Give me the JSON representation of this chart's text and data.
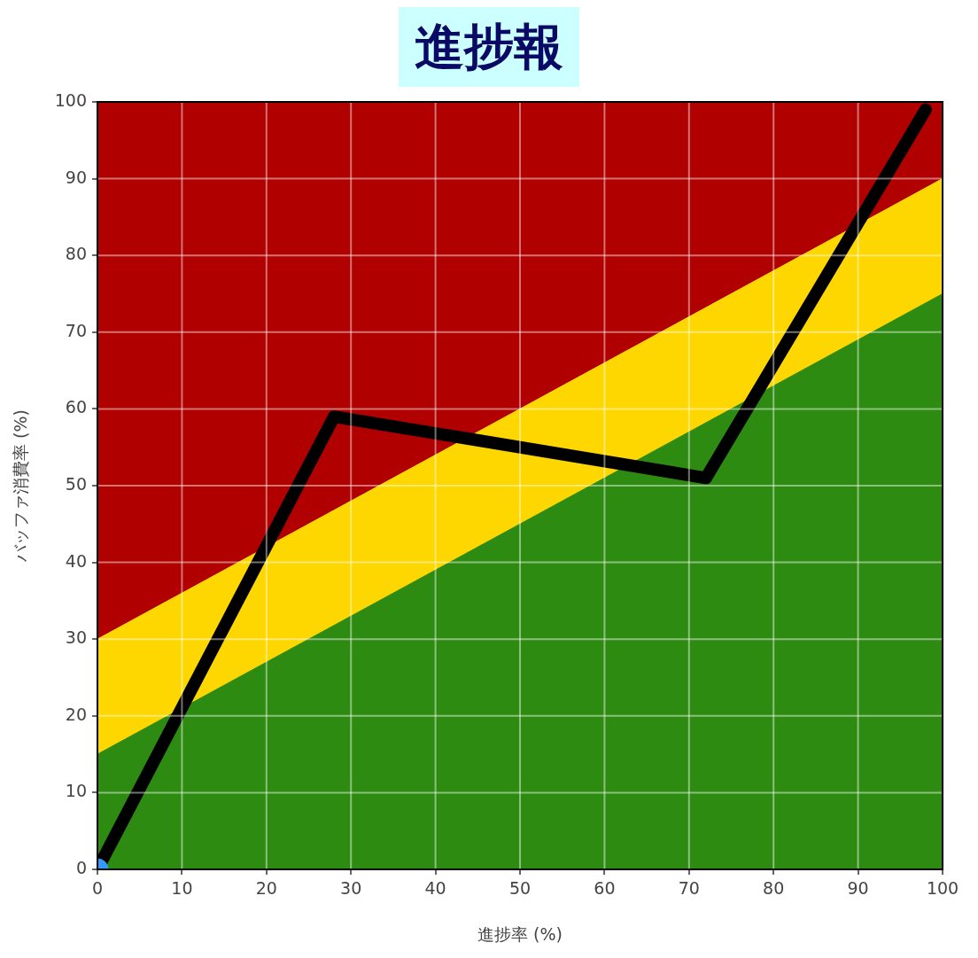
{
  "chart_data": {
    "type": "area",
    "title": "進捗報",
    "xlabel": "進捗率 (%)",
    "ylabel": "バッファ消費率 (%)",
    "stacked": true,
    "xlim": [
      0,
      100
    ],
    "ylim": [
      0,
      100
    ],
    "xticks": [
      0,
      10,
      20,
      30,
      40,
      50,
      60,
      70,
      80,
      90,
      100
    ],
    "yticks": [
      0,
      10,
      20,
      30,
      40,
      50,
      60,
      70,
      80,
      90,
      100
    ],
    "grid": true,
    "series": [
      {
        "x": [
          0,
          100
        ],
        "color": "#2e8b12",
        "values": [
          15,
          75
        ]
      },
      {
        "x": [
          0,
          100
        ],
        "color": "#ffd700",
        "values": [
          15,
          15
        ]
      },
      {
        "x": [
          0,
          100
        ],
        "color": "#b00000",
        "values": [
          70,
          10
        ]
      },
      {
        "type": "line",
        "x": [
          0,
          28,
          72,
          98
        ],
        "values": [
          0,
          59,
          51,
          99
        ],
        "color": "#000000",
        "marker": "none"
      },
      {
        "type": "scatter",
        "x": [
          0
        ],
        "values": [
          0
        ],
        "color": "#3399ff",
        "marker": "circle"
      }
    ]
  }
}
